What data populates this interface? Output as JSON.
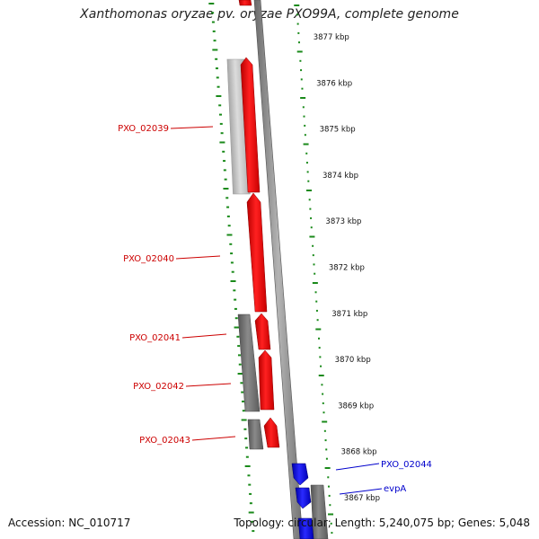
{
  "title": "Xanthomonas oryzae pv. oryzae PXO99A, complete genome",
  "footer": {
    "accession": "Accession: NC_010717",
    "topology": "Topology: circular; Length: 5,240,075 bp; Genes: 5,048"
  },
  "colors": {
    "forward_gene": "#ee0000",
    "reverse_gene": "#0000dd",
    "label_forward": "#cc0000",
    "label_reverse": "#0000cc",
    "backbone": "#808080",
    "ruler_tick": "#1a8a1a",
    "gray_light": "#c8c8c8",
    "gray_dark": "#6e6e6e"
  },
  "ruler_labels": [
    "3877 kbp",
    "3876 kbp",
    "3875 kbp",
    "3874 kbp",
    "3873 kbp",
    "3872 kbp",
    "3871 kbp",
    "3870 kbp",
    "3869 kbp",
    "3868 kbp",
    "3867 kbp"
  ],
  "gene_labels": [
    {
      "label": "PXO_02039",
      "strand": "forward"
    },
    {
      "label": "PXO_02040",
      "strand": "forward"
    },
    {
      "label": "PXO_02041",
      "strand": "forward"
    },
    {
      "label": "PXO_02042",
      "strand": "forward"
    },
    {
      "label": "PXO_02043",
      "strand": "forward"
    },
    {
      "label": "PXO_02044",
      "strand": "reverse"
    },
    {
      "label": "evpA",
      "strand": "reverse"
    }
  ]
}
